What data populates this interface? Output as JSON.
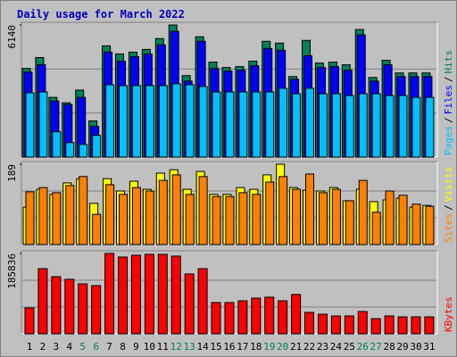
{
  "chart_data": [
    {
      "type": "bar",
      "title": "Daily usage for March 2022",
      "legend_separator": "/",
      "ylim": [
        0,
        6140
      ],
      "yticks": [
        6140
      ],
      "series": [
        {
          "name": "Hits",
          "color": "#00805c",
          "values": [
            4121,
            4626,
            2775,
            2523,
            3112,
            1682,
            5172,
            4794,
            4878,
            5004,
            5509,
            6140,
            3785,
            5593,
            4415,
            4163,
            4205,
            4458,
            5382,
            5298,
            3742,
            5424,
            4373,
            4415,
            4289,
            5929,
            3700,
            4499,
            3911,
            3911,
            3911
          ]
        },
        {
          "name": "Files",
          "color": "#0000ff",
          "values": [
            3953,
            4289,
            2607,
            2439,
            2775,
            1430,
            4878,
            4458,
            4668,
            4794,
            5214,
            5845,
            3532,
            5382,
            4121,
            3995,
            4037,
            4247,
            5046,
            4962,
            3616,
            4710,
            4163,
            4205,
            4037,
            5677,
            3532,
            4289,
            3742,
            3742,
            3742
          ]
        },
        {
          "name": "Pages",
          "color": "#00c0ff",
          "values": [
            2986,
            3028,
            1177,
            673,
            589,
            1009,
            3364,
            3322,
            3322,
            3322,
            3322,
            3406,
            3364,
            3280,
            3028,
            3028,
            3028,
            3028,
            3028,
            3196,
            2944,
            3196,
            2944,
            2944,
            2859,
            2944,
            2944,
            2859,
            2859,
            2775,
            2775
          ]
        }
      ]
    },
    {
      "type": "bar",
      "legend_separator": "/",
      "ylim": [
        0,
        189
      ],
      "yticks": [
        189
      ],
      "series": [
        {
          "name": "Visits",
          "color": "#ffff00",
          "values": [
            88,
            130,
            118,
            145,
            155,
            97,
            155,
            126,
            149,
            130,
            168,
            176,
            130,
            172,
            118,
            118,
            134,
            130,
            164,
            189,
            134,
            128,
            126,
            134,
            103,
            130,
            101,
            105,
            109,
            88,
            92
          ]
        },
        {
          "name": "Sites",
          "color": "#ff8000",
          "values": [
            124,
            134,
            122,
            139,
            160,
            71,
            141,
            118,
            134,
            126,
            151,
            164,
            118,
            160,
            113,
            113,
            122,
            118,
            147,
            160,
            130,
            166,
            122,
            130,
            103,
            151,
            76,
            126,
            116,
            95,
            90
          ]
        }
      ]
    },
    {
      "type": "bar",
      "ylim": [
        0,
        185836
      ],
      "yticks": [
        185836
      ],
      "categories": [
        "1",
        "2",
        "3",
        "4",
        "5",
        "6",
        "7",
        "8",
        "9",
        "10",
        "11",
        "12",
        "13",
        "14",
        "15",
        "16",
        "17",
        "18",
        "19",
        "20",
        "21",
        "22",
        "23",
        "24",
        "25",
        "26",
        "27",
        "28",
        "29",
        "30",
        "31"
      ],
      "category_colors": [
        "#000000",
        "#000000",
        "#000000",
        "#000000",
        "#00805c",
        "#00805c",
        "#000000",
        "#000000",
        "#000000",
        "#000000",
        "#000000",
        "#00805c",
        "#00805c",
        "#000000",
        "#000000",
        "#000000",
        "#000000",
        "#000000",
        "#00805c",
        "#00805c",
        "#000000",
        "#000000",
        "#000000",
        "#000000",
        "#000000",
        "#00805c",
        "#00805c",
        "#000000",
        "#000000",
        "#000000",
        "#000000"
      ],
      "series": [
        {
          "name": "KBytes",
          "color": "#ff0000",
          "values": [
            59880,
            150700,
            132200,
            126000,
            115600,
            111500,
            185836,
            177600,
            181700,
            183800,
            183800,
            179700,
            138400,
            150700,
            72300,
            72300,
            76400,
            82600,
            84700,
            76400,
            90900,
            49600,
            45400,
            41300,
            41300,
            51600,
            35100,
            41300,
            39200,
            39200,
            39200
          ]
        }
      ]
    }
  ]
}
